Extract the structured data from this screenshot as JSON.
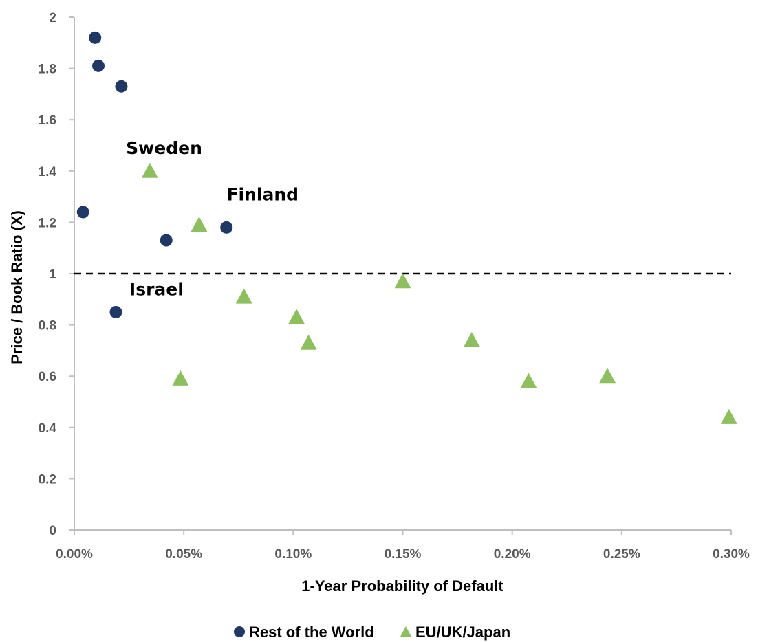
{
  "chart_data": {
    "type": "scatter",
    "title": "",
    "xlabel": "1-Year Probability of Default",
    "ylabel": "Price / Book Ratio (X)",
    "xlim": [
      0,
      0.003
    ],
    "ylim": [
      0,
      2
    ],
    "x_ticks": [
      0,
      0.0005,
      0.001,
      0.0015,
      0.002,
      0.0025,
      0.003
    ],
    "x_tick_labels": [
      "0.00%",
      "0.05%",
      "0.10%",
      "0.15%",
      "0.20%",
      "0.25%",
      "0.30%"
    ],
    "y_ticks": [
      0,
      0.2,
      0.4,
      0.6,
      0.8,
      1,
      1.2,
      1.4,
      1.6,
      1.8,
      2
    ],
    "y_tick_labels": [
      "0",
      "0.2",
      "0.4",
      "0.6",
      "0.8",
      "1",
      "1.2",
      "1.4",
      "1.6",
      "1.8",
      "2"
    ],
    "grid": false,
    "legend_position": "bottom",
    "reference_line": {
      "y": 1,
      "style": "dashed",
      "color": "#000000"
    },
    "series": [
      {
        "name": "Rest of the World",
        "marker": "circle",
        "color": "#1F3864",
        "points": [
          {
            "x": 9.5e-05,
            "y": 1.92
          },
          {
            "x": 0.00011,
            "y": 1.81
          },
          {
            "x": 0.000215,
            "y": 1.73
          },
          {
            "x": 4e-05,
            "y": 1.24
          },
          {
            "x": 0.00042,
            "y": 1.13
          },
          {
            "x": 0.000695,
            "y": 1.18
          },
          {
            "x": 0.00019,
            "y": 0.85
          }
        ]
      },
      {
        "name": "EU/UK/Japan",
        "marker": "triangle",
        "color": "#8DBF5E",
        "points": [
          {
            "x": 0.000345,
            "y": 1.4
          },
          {
            "x": 0.00057,
            "y": 1.19
          },
          {
            "x": 0.000485,
            "y": 0.59
          },
          {
            "x": 0.000775,
            "y": 0.91
          },
          {
            "x": 0.001015,
            "y": 0.83
          },
          {
            "x": 0.00107,
            "y": 0.73
          },
          {
            "x": 0.0015,
            "y": 0.97
          },
          {
            "x": 0.001815,
            "y": 0.74
          },
          {
            "x": 0.002075,
            "y": 0.58
          },
          {
            "x": 0.002435,
            "y": 0.6
          },
          {
            "x": 0.00299,
            "y": 0.44
          }
        ]
      }
    ],
    "annotations": [
      {
        "text": "Sweden",
        "x": 0.00041,
        "y": 1.49
      },
      {
        "text": "Finland",
        "x": 0.00086,
        "y": 1.31
      },
      {
        "text": "Israel",
        "x": 0.000375,
        "y": 0.94
      }
    ]
  }
}
